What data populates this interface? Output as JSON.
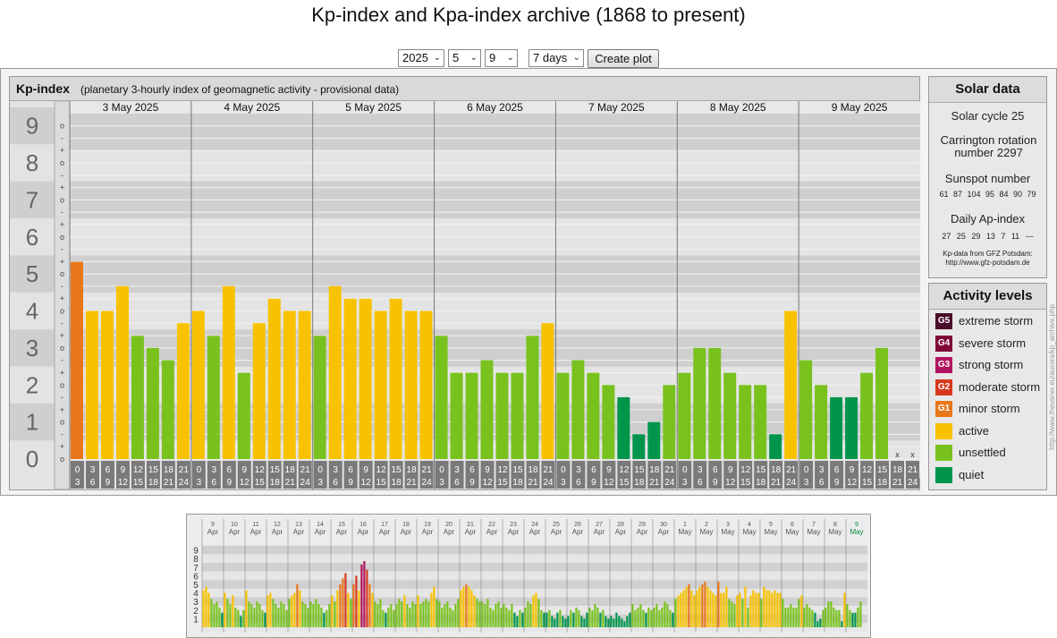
{
  "page": {
    "title": "Kp-index and Kpa-index archive (1868 to present)"
  },
  "controls": {
    "year": "2025",
    "month": "5",
    "day": "9",
    "range": "7 days",
    "create_label": "Create plot"
  },
  "kp_panel": {
    "title": "Kp-index",
    "subtitle": "(planetary 3-hourly index of geomagnetic activity - provisional data)",
    "levels": [
      "9",
      "8",
      "7",
      "6",
      "5",
      "4",
      "3",
      "2",
      "1",
      "0"
    ],
    "days": [
      "3 May 2025",
      "4 May 2025",
      "5 May 2025",
      "6 May 2025",
      "7 May 2025",
      "8 May 2025",
      "9 May 2025"
    ],
    "hours_top": [
      "0",
      "3",
      "6",
      "9",
      "12",
      "15",
      "18",
      "21"
    ],
    "hours_bottom": [
      "3",
      "6",
      "9",
      "12",
      "15",
      "18",
      "21",
      "24"
    ],
    "missing_mark": "x"
  },
  "chart_data": {
    "type": "bar",
    "title": "Kp-index",
    "ylim": [
      0,
      9
    ],
    "categories": [
      "3 May 2025",
      "4 May 2025",
      "5 May 2025",
      "6 May 2025",
      "7 May 2025",
      "8 May 2025",
      "9 May 2025"
    ],
    "values": [
      [
        5.33,
        4.0,
        4.0,
        4.67,
        3.33,
        3.0,
        2.67,
        3.67
      ],
      [
        4.0,
        3.33,
        4.67,
        2.33,
        3.67,
        4.33,
        4.0,
        4.0
      ],
      [
        3.33,
        4.67,
        4.33,
        4.33,
        4.0,
        4.33,
        4.0,
        4.0
      ],
      [
        3.33,
        2.33,
        2.33,
        2.67,
        2.33,
        2.33,
        3.33,
        3.67
      ],
      [
        2.33,
        2.67,
        2.33,
        2.0,
        1.67,
        0.67,
        1.0,
        2.0
      ],
      [
        2.33,
        3.0,
        3.0,
        2.33,
        2.0,
        2.0,
        0.67,
        4.0
      ],
      [
        2.67,
        2.0,
        1.67,
        1.67,
        2.33,
        3.0,
        null,
        null
      ]
    ],
    "colors": {
      "quiet": "#00954b",
      "unsettled": "#79c21e",
      "active": "#f8c200",
      "G1": "#e8771c",
      "G2": "#d63a1e",
      "G3": "#b1155e",
      "G4": "#800838",
      "G5": "#4a0a2a"
    }
  },
  "solar": {
    "title": "Solar data",
    "cycle": "Solar cycle 25",
    "carrington": "Carrington rotation number 2297",
    "sunspot_label": "Sunspot number",
    "sunspot_values": "61  87  104  95  84  90  79",
    "ap_label": "Daily Ap-index",
    "ap_values": "27  25  29  13  7  11  ---",
    "source_line1": "Kp-data from GFZ Potsdam:",
    "source_line2": "http://www.gfz-potsdam.de"
  },
  "activity": {
    "title": "Activity levels",
    "items": [
      {
        "code": "G5",
        "label": "extreme storm",
        "color": "#4a0a2a"
      },
      {
        "code": "G4",
        "label": "severe storm",
        "color": "#800838"
      },
      {
        "code": "G3",
        "label": "strong storm",
        "color": "#b1155e"
      },
      {
        "code": "G2",
        "label": "moderate storm",
        "color": "#d63a1e"
      },
      {
        "code": "G1",
        "label": "minor storm",
        "color": "#e8771c"
      },
      {
        "code": "",
        "label": "active",
        "color": "#f8c200"
      },
      {
        "code": "",
        "label": "unsettled",
        "color": "#79c21e"
      },
      {
        "code": "",
        "label": "quiet",
        "color": "#00954b"
      }
    ]
  },
  "credit": "http://www.theusner.eu/aurora/kp_archive.php",
  "overview": {
    "levels": [
      "9",
      "8",
      "7",
      "6",
      "5",
      "4",
      "3",
      "2",
      "1"
    ],
    "dates": [
      {
        "d": "9",
        "m": "Apr"
      },
      {
        "d": "10",
        "m": "Apr"
      },
      {
        "d": "11",
        "m": "Apr"
      },
      {
        "d": "12",
        "m": "Apr"
      },
      {
        "d": "13",
        "m": "Apr"
      },
      {
        "d": "14",
        "m": "Apr"
      },
      {
        "d": "15",
        "m": "Apr"
      },
      {
        "d": "16",
        "m": "Apr"
      },
      {
        "d": "17",
        "m": "Apr"
      },
      {
        "d": "18",
        "m": "Apr"
      },
      {
        "d": "19",
        "m": "Apr"
      },
      {
        "d": "20",
        "m": "Apr"
      },
      {
        "d": "21",
        "m": "Apr"
      },
      {
        "d": "22",
        "m": "Apr"
      },
      {
        "d": "23",
        "m": "Apr"
      },
      {
        "d": "24",
        "m": "Apr"
      },
      {
        "d": "25",
        "m": "Apr"
      },
      {
        "d": "26",
        "m": "Apr"
      },
      {
        "d": "27",
        "m": "Apr"
      },
      {
        "d": "28",
        "m": "Apr"
      },
      {
        "d": "29",
        "m": "Apr"
      },
      {
        "d": "30",
        "m": "Apr"
      },
      {
        "d": "1",
        "m": "May"
      },
      {
        "d": "2",
        "m": "May"
      },
      {
        "d": "3",
        "m": "May"
      },
      {
        "d": "4",
        "m": "May"
      },
      {
        "d": "5",
        "m": "May"
      },
      {
        "d": "6",
        "m": "May"
      },
      {
        "d": "7",
        "m": "May"
      },
      {
        "d": "8",
        "m": "May"
      },
      {
        "d": "9",
        "m": "May"
      }
    ],
    "kp": [
      [
        4.3,
        4.7,
        4.0,
        3.3,
        2.7,
        3.0,
        2.3,
        1.7
      ],
      [
        4.0,
        3.3,
        2.7,
        3.7,
        2.3,
        2.0,
        1.3,
        2.0
      ],
      [
        4.3,
        3.0,
        2.7,
        2.3,
        3.0,
        2.7,
        2.0,
        1.7
      ],
      [
        3.7,
        4.0,
        3.3,
        2.7,
        2.3,
        3.0,
        2.7,
        2.0
      ],
      [
        3.3,
        3.7,
        4.0,
        5.0,
        4.3,
        3.0,
        2.7,
        2.3
      ],
      [
        3.0,
        2.7,
        3.3,
        2.7,
        2.3,
        1.7,
        2.0,
        2.7
      ],
      [
        3.7,
        3.0,
        4.3,
        5.0,
        5.7,
        6.3,
        4.0,
        3.3
      ],
      [
        5.0,
        6.0,
        4.3,
        7.3,
        7.7,
        6.7,
        5.0,
        4.0
      ],
      [
        3.0,
        2.7,
        3.3,
        2.0,
        1.7,
        2.3,
        2.7,
        2.0
      ],
      [
        2.7,
        3.3,
        3.0,
        3.7,
        2.7,
        2.3,
        3.0,
        2.7
      ],
      [
        3.7,
        2.7,
        3.0,
        3.3,
        3.0,
        4.0,
        4.7,
        3.3
      ],
      [
        3.0,
        2.3,
        2.7,
        3.0,
        2.3,
        2.0,
        2.7,
        3.3
      ],
      [
        4.3,
        4.7,
        5.0,
        4.7,
        4.3,
        3.7,
        3.3,
        3.0
      ],
      [
        3.0,
        2.7,
        3.3,
        2.3,
        2.0,
        2.7,
        3.0,
        2.3
      ],
      [
        2.7,
        2.3,
        2.0,
        2.7,
        1.7,
        1.3,
        2.0,
        1.7
      ],
      [
        2.3,
        3.0,
        2.7,
        3.7,
        4.0,
        3.3,
        2.0,
        1.7
      ],
      [
        1.7,
        2.0,
        1.3,
        1.0,
        1.7,
        2.0,
        1.3,
        1.0
      ],
      [
        1.3,
        2.0,
        1.7,
        2.3,
        2.0,
        1.3,
        1.0,
        1.7
      ],
      [
        2.3,
        2.0,
        2.7,
        2.3,
        1.7,
        2.0,
        1.3,
        1.0
      ],
      [
        1.3,
        1.0,
        1.7,
        1.3,
        1.0,
        0.7,
        1.3,
        1.7
      ],
      [
        2.7,
        2.0,
        2.3,
        2.7,
        2.0,
        1.7,
        2.3,
        2.0
      ],
      [
        2.3,
        2.7,
        2.0,
        2.3,
        3.0,
        2.7,
        2.0,
        1.7
      ],
      [
        3.3,
        3.7,
        4.0,
        4.3,
        4.7,
        5.0,
        4.3,
        3.7
      ],
      [
        4.3,
        4.7,
        5.0,
        5.3,
        4.7,
        4.3,
        4.0,
        3.7
      ],
      [
        5.3,
        4.0,
        4.0,
        4.7,
        3.3,
        3.0,
        2.7,
        3.7
      ],
      [
        4.0,
        3.3,
        4.7,
        2.3,
        3.7,
        4.3,
        4.0,
        4.0
      ],
      [
        3.3,
        4.7,
        4.3,
        4.3,
        4.0,
        4.3,
        4.0,
        4.0
      ],
      [
        3.3,
        2.3,
        2.3,
        2.7,
        2.3,
        2.3,
        3.3,
        3.7
      ],
      [
        2.3,
        2.7,
        2.3,
        2.0,
        1.7,
        0.7,
        1.0,
        2.0
      ],
      [
        2.3,
        3.0,
        3.0,
        2.3,
        2.0,
        2.0,
        0.7,
        4.0
      ],
      [
        2.7,
        2.0,
        1.7,
        1.7,
        2.3,
        3.0,
        null,
        null
      ]
    ]
  }
}
